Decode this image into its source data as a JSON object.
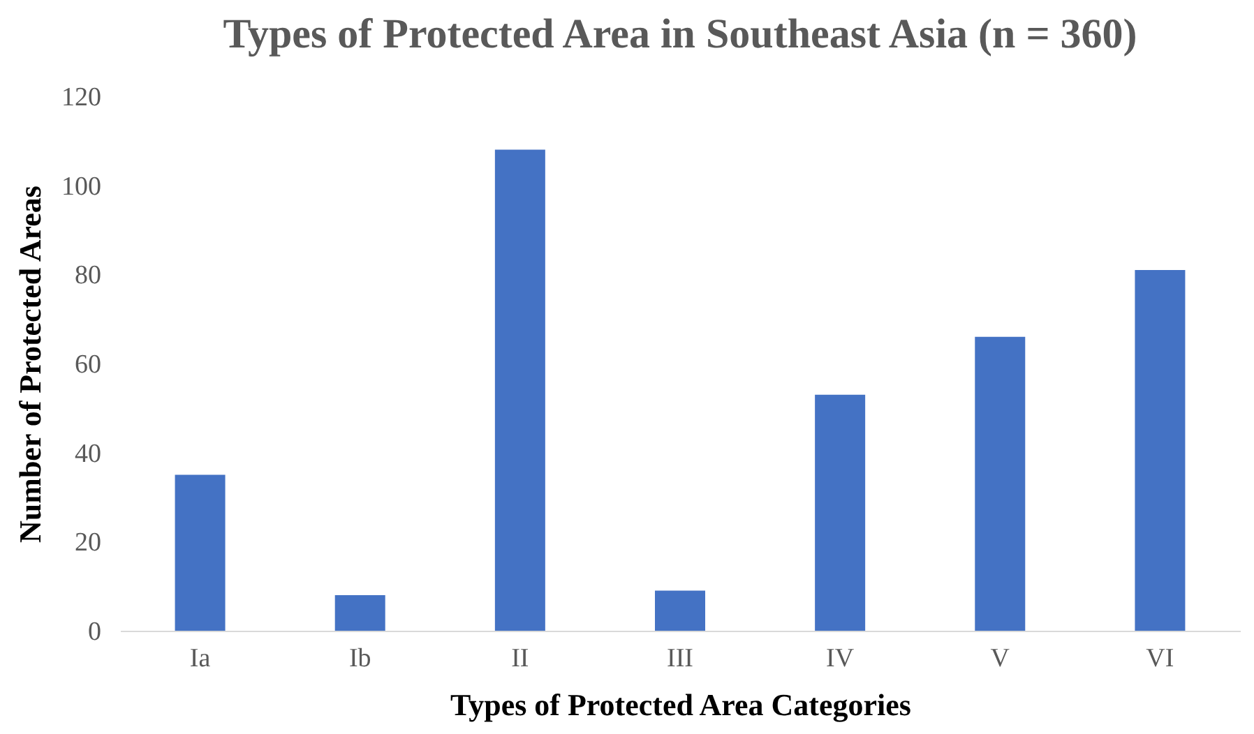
{
  "chart_data": {
    "type": "bar",
    "title": "Types of Protected Area in Southeast Asia (n = 360)",
    "xlabel": "Types of Protected Area Categories",
    "ylabel": "Number of Protected Areas",
    "categories": [
      "Ia",
      "Ib",
      "II",
      "III",
      "IV",
      "V",
      "VI"
    ],
    "values": [
      35,
      8,
      108,
      9,
      53,
      66,
      81
    ],
    "color": "#4472c4",
    "ylim": [
      0,
      120
    ],
    "yticks": [
      0,
      20,
      40,
      60,
      80,
      100,
      120
    ],
    "grid": false
  }
}
